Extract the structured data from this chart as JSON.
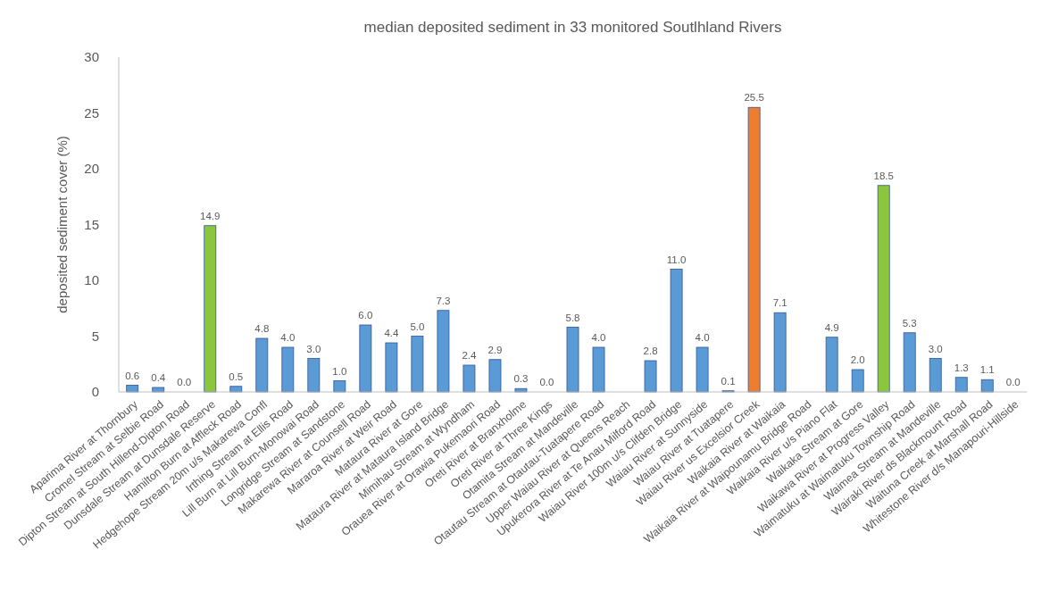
{
  "chart_data": {
    "type": "bar",
    "title": "median deposited sediment in 33 monitored Soutlhland Rivers",
    "ylabel": "deposited sediment cover (%)",
    "categories": [
      "Aparima River at Thornbury",
      "Cromel Stream at Selbie Road",
      "Dipton Stream at South Hillend-Dipton Road",
      "Dunsdale Stream at Dunsdale Reserve",
      "Hamilton Burn at Affleck Road",
      "Hedgehope Stream 20m u/s Makarewa Confl",
      "Irthing Stream at Ellis Road",
      "Lill Burn at Lill Burn-Monowai Road",
      "Longridge Stream at Sandstone",
      "Makarewa River at Counsell Road",
      "Mararoa River at Weir Road",
      "Mataura River at Gore",
      "Mataura River at Mataura Island Bridge",
      "Mimihau Stream at Wyndham",
      "Orauea River at Orawia Pukemaori Road",
      "Oreti River at Branxholme",
      "Oreti River at Three Kings",
      "Otamita Stream at Mandeville",
      "Otautau Stream at Otautau-Tuatapere Road",
      "Upper Waiau River at Queens Reach",
      "Upukerora River at Te Anau Milford Road",
      "Waiau River 100m u/s Clifden Bridge",
      "Waiau River at Sunnyside",
      "Waiau River at Tuatapere",
      "Waiau River us Excelsior Creek",
      "Waikaia River at Waikaia",
      "Waikaia River at Waipounamu Bridge Road",
      "Waikaia River u/s Piano Flat",
      "Waikaka Stream at Gore",
      "Waikawa River at Progress Valley",
      "Waimatuku at Waimatuku Township Road",
      "Waimea Stream at Mandeville",
      "Wairaki River ds Blackmount Road",
      "Waituna Creek at Marshall Road",
      "Whitestone River d/s Manapouri-Hillside"
    ],
    "values": [
      0.6,
      0.4,
      0.0,
      14.9,
      0.5,
      4.8,
      4.0,
      3.0,
      1.0,
      6.0,
      4.4,
      5.0,
      7.3,
      2.4,
      2.9,
      0.3,
      0.0,
      5.8,
      4.0,
      null,
      2.8,
      11.0,
      4.0,
      0.1,
      25.5,
      7.1,
      null,
      4.9,
      2.0,
      18.5,
      5.3,
      3.0,
      1.3,
      1.1,
      0.0
    ],
    "value_labels": [
      "0.6",
      "0.4",
      "0.0",
      "14.9",
      "0.5",
      "4.8",
      "4.0",
      "3.0",
      "1.0",
      "6.0",
      "4.4",
      "5.0",
      "7.3",
      "2.4",
      "2.9",
      "0.3",
      "0.0",
      "5.8",
      "4.0",
      null,
      "2.8",
      "11.0",
      "4.0",
      "0.1",
      "25.5",
      "7.1",
      null,
      "4.9",
      "2.0",
      "18.5",
      "5.3",
      "3.0",
      "1.3",
      "1.1",
      "0.0"
    ],
    "colors": [
      "#5b9bd5",
      "#5b9bd5",
      "#5b9bd5",
      "#8cc63f",
      "#5b9bd5",
      "#5b9bd5",
      "#5b9bd5",
      "#5b9bd5",
      "#5b9bd5",
      "#5b9bd5",
      "#5b9bd5",
      "#5b9bd5",
      "#5b9bd5",
      "#5b9bd5",
      "#5b9bd5",
      "#5b9bd5",
      "#5b9bd5",
      "#5b9bd5",
      "#5b9bd5",
      null,
      "#5b9bd5",
      "#5b9bd5",
      "#5b9bd5",
      "#5b9bd5",
      "#ed7d31",
      "#5b9bd5",
      null,
      "#5b9bd5",
      "#5b9bd5",
      "#8cc63f",
      "#5b9bd5",
      "#5b9bd5",
      "#5b9bd5",
      "#5b9bd5",
      "#5b9bd5"
    ],
    "ylim": [
      0,
      30
    ],
    "yticks": [
      0,
      5,
      10,
      15,
      20,
      25,
      30
    ]
  }
}
